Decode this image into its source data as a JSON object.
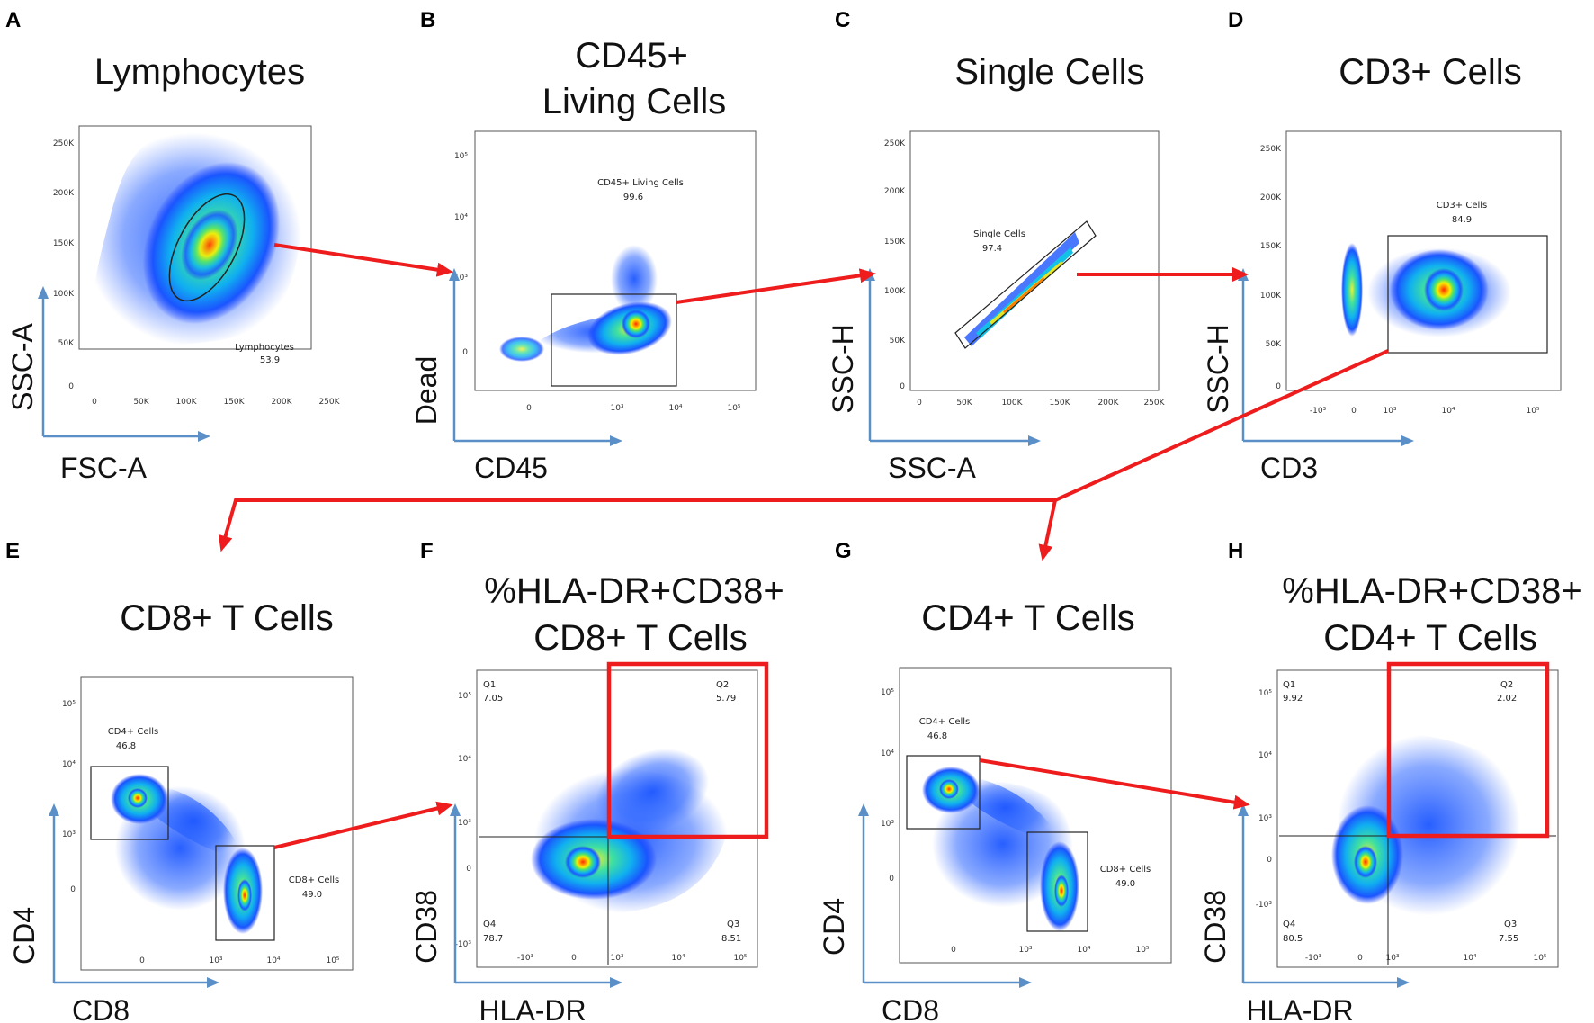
{
  "colors": {
    "arrow": "#ee1c1c",
    "axis": "#5b8fc7",
    "frame": "#555555",
    "gate": "#222222",
    "highlight": "#ee1c1c"
  },
  "panels": [
    {
      "id": "A",
      "letter": "A",
      "title": [
        "Lymphocytes"
      ],
      "xlabel": "FSC-A",
      "ylabel": "SSC-A",
      "xticks": [
        "0",
        "50K",
        "100K",
        "150K",
        "200K",
        "250K"
      ],
      "yticks": [
        "0",
        "50K",
        "100K",
        "150K",
        "200K",
        "250K"
      ],
      "gates": [
        {
          "name": "Lymphocytes",
          "value": "53.9"
        }
      ]
    },
    {
      "id": "B",
      "letter": "B",
      "title": [
        "CD45+",
        "Living Cells"
      ],
      "xlabel": "CD45",
      "ylabel": "Dead",
      "xticks": [
        "0",
        "10³",
        "10⁴",
        "10⁵"
      ],
      "yticks": [
        "0",
        "10³",
        "10⁴",
        "10⁵"
      ],
      "gates": [
        {
          "name": "CD45+ Living Cells",
          "value": "99.6"
        }
      ]
    },
    {
      "id": "C",
      "letter": "C",
      "title": [
        "Single Cells"
      ],
      "xlabel": "SSC-A",
      "ylabel": "SSC-H",
      "xticks": [
        "0",
        "50K",
        "100K",
        "150K",
        "200K",
        "250K"
      ],
      "yticks": [
        "0",
        "50K",
        "100K",
        "150K",
        "200K",
        "250K"
      ],
      "gates": [
        {
          "name": "Single Cells",
          "value": "97.4"
        }
      ]
    },
    {
      "id": "D",
      "letter": "D",
      "title": [
        "CD3+ Cells"
      ],
      "xlabel": "CD3",
      "ylabel": "SSC-H",
      "xticks": [
        "-10³",
        "0",
        "10³",
        "10⁴",
        "10⁵"
      ],
      "yticks": [
        "0",
        "50K",
        "100K",
        "150K",
        "200K",
        "250K"
      ],
      "gates": [
        {
          "name": "CD3+ Cells",
          "value": "84.9"
        }
      ]
    },
    {
      "id": "E",
      "letter": "E",
      "title": [
        "CD8+ T Cells"
      ],
      "xlabel": "CD8",
      "ylabel": "CD4",
      "xticks": [
        "0",
        "10³",
        "10⁴",
        "10⁵"
      ],
      "yticks": [
        "0",
        "10³",
        "10⁴",
        "10⁵"
      ],
      "gates": [
        {
          "name": "CD4+ Cells",
          "value": "46.8"
        },
        {
          "name": "CD8+ Cells",
          "value": "49.0"
        }
      ]
    },
    {
      "id": "F",
      "letter": "F",
      "title": [
        "%HLA-DR+CD38+",
        "CD8+ T Cells"
      ],
      "xlabel": "HLA-DR",
      "ylabel": "CD38",
      "xticks": [
        "-10³",
        "0",
        "10³",
        "10⁴",
        "10⁵"
      ],
      "yticks": [
        "-10³",
        "0",
        "10³",
        "10⁴",
        "10⁵"
      ],
      "gates": [
        {
          "name": "Q1",
          "value": "7.05"
        },
        {
          "name": "Q2",
          "value": "5.79"
        },
        {
          "name": "Q3",
          "value": "8.51"
        },
        {
          "name": "Q4",
          "value": "78.7"
        }
      ]
    },
    {
      "id": "G",
      "letter": "G",
      "title": [
        "CD4+ T Cells"
      ],
      "xlabel": "CD8",
      "ylabel": "CD4",
      "xticks": [
        "0",
        "10³",
        "10⁴",
        "10⁵"
      ],
      "yticks": [
        "0",
        "10³",
        "10⁴",
        "10⁵"
      ],
      "gates": [
        {
          "name": "CD4+ Cells",
          "value": "46.8"
        },
        {
          "name": "CD8+ Cells",
          "value": "49.0"
        }
      ]
    },
    {
      "id": "H",
      "letter": "H",
      "title": [
        "%HLA-DR+CD38+",
        "CD4+ T Cells"
      ],
      "xlabel": "HLA-DR",
      "ylabel": "CD38",
      "xticks": [
        "-10³",
        "0",
        "10³",
        "10⁴",
        "10⁵"
      ],
      "yticks": [
        "-10³",
        "0",
        "10³",
        "10⁴",
        "10⁵"
      ],
      "gates": [
        {
          "name": "Q1",
          "value": "9.92"
        },
        {
          "name": "Q2",
          "value": "2.02"
        },
        {
          "name": "Q3",
          "value": "7.55"
        },
        {
          "name": "Q4",
          "value": "80.5"
        }
      ]
    }
  ]
}
